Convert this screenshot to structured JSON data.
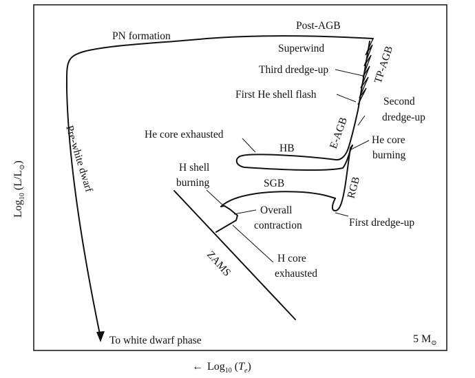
{
  "diagram": {
    "stellar_mass_label": "5 M",
    "sun_symbol": "⊙",
    "y_axis": {
      "prefix": "Log",
      "sub": "10",
      "body": " (L/L",
      "sun": "⊙",
      "close": ")"
    },
    "x_axis": {
      "arrow": "←",
      "prefix": "Log",
      "sub": "10",
      "body": " (",
      "var": "T",
      "var_sub": "e",
      "close": ")"
    },
    "labels": {
      "post_agb": "Post-AGB",
      "pn_formation": "PN formation",
      "superwind": "Superwind",
      "third_dredge_up": "Third dredge-up",
      "tp_agb": "TP-AGB",
      "first_he_shell_flash": "First He shell flash",
      "second_dredge_up_1": "Second",
      "second_dredge_up_2": "dredge-up",
      "e_agb": "E-AGB",
      "he_core_exhausted": "He core exhausted",
      "hb": "HB",
      "he_core_burning_1": "He core",
      "he_core_burning_2": "burning",
      "h_shell_burning_1": "H shell",
      "h_shell_burning_2": "burning",
      "sgb": "SGB",
      "rgb": "RGB",
      "overall_contraction_1": "Overall",
      "overall_contraction_2": "contraction",
      "first_dredge_up": "First dredge-up",
      "h_core_exhausted_1": "H core",
      "h_core_exhausted_2": "exhausted",
      "zams": "ZAMS",
      "pre_white_dwarf": "Pre-white dwarf",
      "to_white_dwarf": "To white dwarf phase"
    }
  }
}
